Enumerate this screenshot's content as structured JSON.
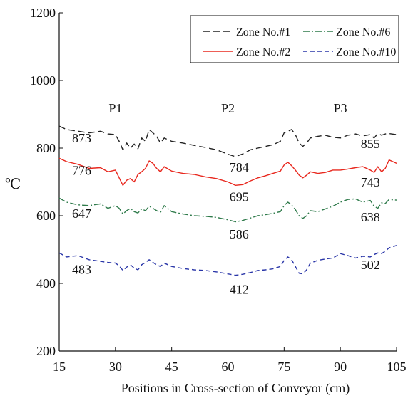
{
  "chart_data": {
    "type": "line",
    "xlabel": "Positions in Cross-section of Conveyor (cm)",
    "ylabel": "℃",
    "xlim": [
      15,
      105
    ],
    "ylim": [
      200,
      1200
    ],
    "x_ticks": [
      "15",
      "30",
      "45",
      "60",
      "75",
      "90",
      "105"
    ],
    "y_ticks": [
      "200",
      "400",
      "600",
      "800",
      "1000",
      "1200"
    ],
    "grid": false,
    "legend_position": "top-right",
    "region_labels": [
      "P1",
      "P2",
      "P3"
    ],
    "series": [
      {
        "name": "Zone No.#1",
        "color": "#222222",
        "dash": "long-dash",
        "x": [
          15,
          17,
          20,
          23,
          26,
          28,
          30,
          31,
          32,
          33,
          34,
          35,
          36,
          37,
          38,
          39,
          40,
          41,
          42,
          43,
          45,
          48,
          51,
          54,
          57,
          60,
          62,
          64,
          66,
          68,
          70,
          72,
          74,
          75,
          76,
          77,
          78,
          79,
          80,
          81,
          82,
          84,
          86,
          88,
          90,
          92,
          94,
          96,
          98,
          99,
          100,
          101,
          102,
          103,
          105
        ],
        "y": [
          865,
          855,
          850,
          845,
          850,
          842,
          840,
          820,
          795,
          815,
          800,
          812,
          798,
          830,
          820,
          855,
          845,
          835,
          815,
          830,
          820,
          815,
          808,
          802,
          795,
          782,
          775,
          783,
          795,
          800,
          805,
          810,
          820,
          845,
          850,
          855,
          840,
          815,
          805,
          815,
          830,
          835,
          838,
          832,
          830,
          838,
          842,
          836,
          840,
          830,
          843,
          838,
          842,
          843,
          840
        ]
      },
      {
        "name": "Zone No.#2",
        "color": "#e8281e",
        "dash": "solid",
        "x": [
          15,
          17,
          20,
          23,
          26,
          28,
          30,
          31,
          32,
          33,
          34,
          35,
          36,
          37,
          38,
          39,
          40,
          41,
          42,
          43,
          45,
          48,
          51,
          54,
          57,
          60,
          62,
          64,
          66,
          68,
          70,
          72,
          74,
          75,
          76,
          77,
          78,
          79,
          80,
          81,
          82,
          84,
          86,
          88,
          90,
          92,
          94,
          96,
          98,
          99,
          100,
          101,
          102,
          103,
          105
        ],
        "y": [
          770,
          760,
          752,
          740,
          742,
          730,
          735,
          712,
          690,
          705,
          710,
          700,
          722,
          730,
          740,
          762,
          755,
          740,
          730,
          745,
          732,
          725,
          722,
          715,
          710,
          700,
          690,
          692,
          703,
          712,
          718,
          725,
          732,
          750,
          758,
          748,
          735,
          720,
          712,
          720,
          730,
          725,
          728,
          735,
          735,
          738,
          742,
          745,
          735,
          728,
          745,
          730,
          740,
          765,
          755
        ]
      },
      {
        "name": "Zone No.#6",
        "color": "#2e7a4a",
        "dash": "dash-dot",
        "x": [
          15,
          17,
          20,
          23,
          26,
          28,
          30,
          31,
          32,
          33,
          34,
          35,
          36,
          37,
          38,
          39,
          40,
          41,
          42,
          43,
          45,
          48,
          51,
          54,
          57,
          60,
          62,
          64,
          66,
          68,
          70,
          72,
          74,
          75,
          76,
          77,
          78,
          79,
          80,
          81,
          82,
          84,
          86,
          88,
          90,
          92,
          94,
          96,
          98,
          99,
          100,
          101,
          102,
          103,
          105
        ],
        "y": [
          652,
          640,
          632,
          630,
          635,
          622,
          630,
          622,
          605,
          615,
          622,
          612,
          608,
          620,
          615,
          628,
          622,
          615,
          610,
          630,
          612,
          605,
          600,
          598,
          595,
          588,
          582,
          586,
          593,
          600,
          603,
          607,
          612,
          630,
          640,
          632,
          618,
          600,
          592,
          600,
          615,
          612,
          620,
          628,
          640,
          648,
          650,
          640,
          645,
          628,
          622,
          638,
          636,
          648,
          646
        ]
      },
      {
        "name": "Zone No.#10",
        "color": "#2a36a8",
        "dash": "short-dash",
        "x": [
          15,
          17,
          20,
          23,
          26,
          28,
          30,
          31,
          32,
          33,
          34,
          35,
          36,
          37,
          38,
          39,
          40,
          41,
          42,
          43,
          45,
          48,
          51,
          54,
          57,
          60,
          62,
          64,
          66,
          68,
          70,
          72,
          74,
          75,
          76,
          77,
          78,
          79,
          80,
          81,
          82,
          84,
          86,
          88,
          90,
          92,
          94,
          96,
          98,
          99,
          100,
          101,
          102,
          103,
          105
        ],
        "y": [
          490,
          478,
          482,
          470,
          465,
          462,
          460,
          452,
          438,
          448,
          455,
          445,
          440,
          455,
          462,
          470,
          462,
          455,
          450,
          460,
          450,
          444,
          440,
          438,
          434,
          428,
          424,
          427,
          432,
          438,
          440,
          443,
          450,
          468,
          478,
          470,
          450,
          430,
          428,
          440,
          460,
          468,
          472,
          475,
          488,
          482,
          475,
          480,
          478,
          485,
          490,
          488,
          495,
          505,
          512
        ]
      }
    ],
    "annotations": [
      {
        "text": "873",
        "x": 21,
        "y": 817
      },
      {
        "text": "776",
        "x": 21,
        "y": 721
      },
      {
        "text": "647",
        "x": 21,
        "y": 594
      },
      {
        "text": "483",
        "x": 21,
        "y": 428
      },
      {
        "text": "784",
        "x": 63,
        "y": 731
      },
      {
        "text": "695",
        "x": 63,
        "y": 643
      },
      {
        "text": "586",
        "x": 63,
        "y": 533
      },
      {
        "text": "412",
        "x": 63,
        "y": 369
      },
      {
        "text": "855",
        "x": 98,
        "y": 800
      },
      {
        "text": "743",
        "x": 98,
        "y": 686
      },
      {
        "text": "638",
        "x": 98,
        "y": 583
      },
      {
        "text": "502",
        "x": 98,
        "y": 442
      }
    ]
  }
}
